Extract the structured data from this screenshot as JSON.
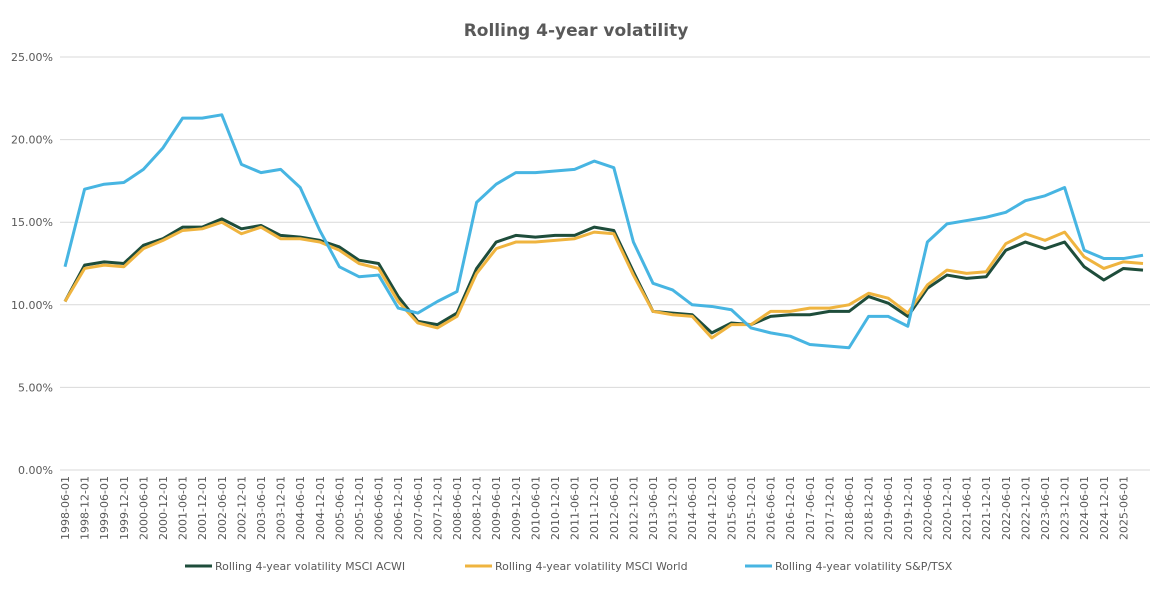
{
  "chart_data": {
    "type": "line",
    "title": "Rolling 4-year volatility",
    "categories": [
      "1998-06-01",
      "1998-12-01",
      "1999-06-01",
      "1999-12-01",
      "2000-06-01",
      "2000-12-01",
      "2001-06-01",
      "2001-12-01",
      "2002-06-01",
      "2002-12-01",
      "2003-06-01",
      "2003-12-01",
      "2004-06-01",
      "2004-12-01",
      "2005-06-01",
      "2005-12-01",
      "2006-06-01",
      "2006-12-01",
      "2007-06-01",
      "2007-12-01",
      "2008-06-01",
      "2008-12-01",
      "2009-06-01",
      "2009-12-01",
      "2010-06-01",
      "2010-12-01",
      "2011-06-01",
      "2011-12-01",
      "2012-06-01",
      "2012-12-01",
      "2013-06-01",
      "2013-12-01",
      "2014-06-01",
      "2014-12-01",
      "2015-06-01",
      "2015-12-01",
      "2016-06-01",
      "2016-12-01",
      "2017-06-01",
      "2017-12-01",
      "2018-06-01",
      "2018-12-01",
      "2019-06-01",
      "2019-12-01",
      "2020-06-01",
      "2020-12-01",
      "2021-06-01",
      "2021-12-01",
      "2022-06-01",
      "2022-12-01",
      "2023-06-01",
      "2023-12-01",
      "2024-06-01",
      "2024-12-01",
      "2025-06-01",
      null
    ],
    "series": [
      {
        "name": "Rolling 4-year volatility MSCI ACWI",
        "color": "#1e4d3b",
        "values": [
          10.2,
          12.4,
          12.6,
          12.5,
          13.6,
          14.0,
          14.7,
          14.7,
          15.2,
          14.6,
          14.8,
          14.2,
          14.1,
          13.9,
          13.5,
          12.7,
          12.5,
          10.5,
          9.0,
          8.8,
          9.5,
          12.2,
          13.8,
          14.2,
          14.1,
          14.2,
          14.2,
          14.7,
          14.5,
          12.0,
          9.6,
          9.5,
          9.4,
          8.3,
          8.9,
          8.8,
          9.3,
          9.4,
          9.4,
          9.6,
          9.6,
          10.5,
          10.1,
          9.3,
          11.0,
          11.8,
          11.6,
          11.7,
          13.3,
          13.8,
          13.4,
          13.8,
          12.3,
          11.5,
          12.2,
          12.1
        ]
      },
      {
        "name": "Rolling 4-year volatility MSCI World",
        "color": "#efb43f",
        "values": [
          10.2,
          12.2,
          12.4,
          12.3,
          13.4,
          13.9,
          14.5,
          14.6,
          15.0,
          14.3,
          14.7,
          14.0,
          14.0,
          13.8,
          13.3,
          12.5,
          12.2,
          10.2,
          8.9,
          8.6,
          9.3,
          11.9,
          13.4,
          13.8,
          13.8,
          13.9,
          14.0,
          14.4,
          14.3,
          11.8,
          9.6,
          9.4,
          9.3,
          8.0,
          8.8,
          8.8,
          9.6,
          9.6,
          9.8,
          9.8,
          10.0,
          10.7,
          10.4,
          9.5,
          11.2,
          12.1,
          11.9,
          12.0,
          13.7,
          14.3,
          13.9,
          14.4,
          12.9,
          12.2,
          12.6,
          12.5
        ]
      },
      {
        "name": "Rolling 4-year volatility S&P/TSX",
        "color": "#47b5e2",
        "values": [
          12.3,
          17.0,
          17.3,
          17.4,
          18.2,
          19.5,
          21.3,
          21.3,
          21.5,
          18.5,
          18.0,
          18.2,
          17.1,
          14.5,
          12.3,
          11.7,
          11.8,
          9.8,
          9.5,
          10.2,
          10.8,
          16.2,
          17.3,
          18.0,
          18.0,
          18.1,
          18.2,
          18.7,
          18.3,
          13.8,
          11.3,
          10.9,
          10.0,
          9.9,
          9.7,
          8.6,
          8.3,
          8.1,
          7.6,
          7.5,
          7.4,
          9.3,
          9.3,
          8.7,
          13.8,
          14.9,
          15.1,
          15.3,
          15.6,
          16.3,
          16.6,
          17.1,
          13.3,
          12.8,
          12.8,
          13.0
        ]
      }
    ],
    "ylim": [
      0,
      25
    ],
    "yticks": [
      {
        "value": 0,
        "label": "0.00%"
      },
      {
        "value": 5,
        "label": "5.00%"
      },
      {
        "value": 10,
        "label": "10.00%"
      },
      {
        "value": 15,
        "label": "15.00%"
      },
      {
        "value": 20,
        "label": "20.00%"
      },
      {
        "value": 25,
        "label": "25.00%"
      }
    ],
    "grid": true,
    "legend": "bottom"
  }
}
